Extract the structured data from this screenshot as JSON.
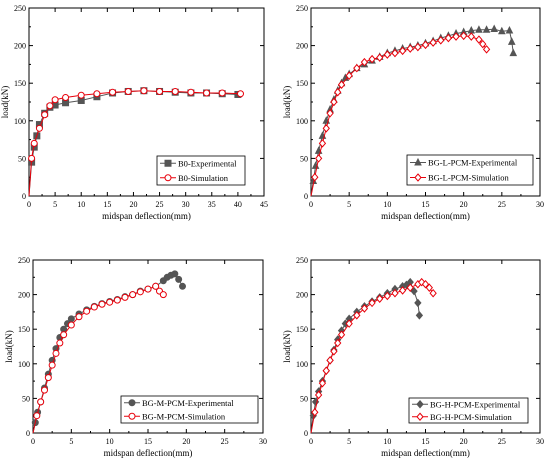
{
  "chart_data": [
    {
      "type": "line",
      "xlabel": "midspan deflection(mm)",
      "ylabel": "load(kN)",
      "xlim": [
        0,
        45
      ],
      "ylim": [
        0,
        250
      ],
      "xticks": [
        0,
        5,
        10,
        15,
        20,
        25,
        30,
        35,
        40,
        45
      ],
      "yticks": [
        0,
        50,
        100,
        150,
        200,
        250
      ],
      "legend_position": "bottom-right",
      "series": [
        {
          "name": "B0-Experimental",
          "color": "#555555",
          "marker": "square",
          "x": [
            0,
            0.5,
            1,
            1.5,
            2,
            3,
            4,
            5,
            7,
            10,
            13,
            16,
            19,
            22,
            25,
            28,
            31,
            34,
            37,
            40
          ],
          "y": [
            0,
            45,
            65,
            80,
            95,
            110,
            118,
            121,
            124,
            127,
            132,
            137,
            139,
            140,
            139,
            138,
            137,
            137,
            136,
            135
          ]
        },
        {
          "name": "B0-Simulation",
          "color": "#e8000b",
          "marker": "circle",
          "x": [
            0,
            0.5,
            1,
            2,
            3,
            4,
            5,
            7,
            10,
            13,
            16,
            19,
            22,
            25,
            28,
            31,
            34,
            37,
            40.5
          ],
          "y": [
            0,
            50,
            70,
            90,
            108,
            120,
            128,
            131,
            134,
            136,
            138,
            139,
            140,
            139,
            139,
            138,
            137,
            137,
            136
          ]
        }
      ]
    },
    {
      "type": "line",
      "xlabel": "midspan deflection(mm)",
      "ylabel": "load(kN)",
      "xlim": [
        0,
        30
      ],
      "ylim": [
        0,
        250
      ],
      "xticks": [
        0,
        5,
        10,
        15,
        20,
        25,
        30
      ],
      "yticks": [
        0,
        50,
        100,
        150,
        200,
        250
      ],
      "legend_position": "bottom-right",
      "series": [
        {
          "name": "BG-L-PCM-Experimental",
          "color": "#555555",
          "marker": "triangle",
          "x": [
            0,
            0.3,
            0.6,
            1,
            1.5,
            2,
            2.5,
            3,
            3.5,
            4,
            4.5,
            5,
            6,
            7,
            8,
            9,
            10,
            11,
            12,
            13,
            14,
            15,
            16,
            17,
            18,
            19,
            20,
            21,
            22,
            23,
            24,
            25,
            26,
            26.3,
            26.5
          ],
          "y": [
            0,
            20,
            40,
            60,
            80,
            100,
            115,
            128,
            140,
            150,
            157,
            162,
            170,
            175,
            180,
            185,
            190,
            193,
            196,
            198,
            200,
            203,
            206,
            210,
            213,
            216,
            218,
            220,
            221,
            221,
            222,
            219,
            220,
            205,
            190
          ]
        },
        {
          "name": "BG-L-PCM-Simulation",
          "color": "#e8000b",
          "marker": "diamond",
          "x": [
            0,
            0.5,
            1,
            1.5,
            2,
            2.5,
            3,
            3.5,
            4,
            5,
            6,
            7,
            8,
            9,
            10,
            11,
            12,
            13,
            14,
            15,
            16,
            17,
            18,
            19,
            20,
            21,
            22,
            22.5,
            23
          ],
          "y": [
            0,
            25,
            50,
            70,
            90,
            110,
            125,
            138,
            148,
            160,
            170,
            178,
            182,
            184,
            188,
            190,
            193,
            196,
            198,
            201,
            204,
            207,
            210,
            212,
            213,
            212,
            208,
            202,
            195
          ]
        }
      ]
    },
    {
      "type": "line",
      "xlabel": "midspan deflection(mm)",
      "ylabel": "load(kN)",
      "xlim": [
        0,
        30
      ],
      "ylim": [
        0,
        250
      ],
      "xticks": [
        0,
        5,
        10,
        15,
        20,
        25,
        30
      ],
      "yticks": [
        0,
        50,
        100,
        150,
        200,
        250
      ],
      "legend_position": "bottom-right",
      "series": [
        {
          "name": "BG-M-PCM-Experimental",
          "color": "#555555",
          "marker": "circle-filled",
          "x": [
            0,
            0.3,
            0.6,
            1,
            1.5,
            2,
            2.5,
            3,
            3.5,
            4,
            4.5,
            5,
            6,
            7,
            8,
            9,
            10,
            11,
            12,
            13,
            14,
            15,
            16,
            17,
            17.5,
            18,
            18.5,
            19,
            19.5
          ],
          "y": [
            0,
            15,
            30,
            45,
            65,
            85,
            105,
            122,
            138,
            150,
            158,
            165,
            172,
            178,
            183,
            187,
            190,
            193,
            197,
            200,
            205,
            208,
            212,
            220,
            225,
            228,
            230,
            222,
            212
          ]
        },
        {
          "name": "BG-M-PCM-Simulation",
          "color": "#e8000b",
          "marker": "circle",
          "x": [
            0,
            0.5,
            1,
            1.5,
            2,
            2.5,
            3,
            3.5,
            4,
            5,
            6,
            7,
            8,
            9,
            10,
            11,
            12,
            13,
            14,
            15,
            16,
            16.5,
            17
          ],
          "y": [
            0,
            25,
            45,
            62,
            80,
            98,
            115,
            130,
            142,
            156,
            168,
            176,
            182,
            186,
            189,
            192,
            196,
            200,
            204,
            208,
            212,
            205,
            200
          ]
        }
      ]
    },
    {
      "type": "line",
      "xlabel": "midspan deflection(mm)",
      "ylabel": "load(kN)",
      "xlim": [
        0,
        30
      ],
      "ylim": [
        0,
        250
      ],
      "xticks": [
        0,
        5,
        10,
        15,
        20,
        25,
        30
      ],
      "yticks": [
        0,
        50,
        100,
        150,
        200,
        250
      ],
      "legend_position": "bottom-right",
      "series": [
        {
          "name": "BG-H-PCM-Experimental",
          "color": "#555555",
          "marker": "diamond-filled",
          "x": [
            0,
            0.3,
            0.6,
            1,
            1.5,
            2,
            2.5,
            3,
            3.5,
            4,
            4.5,
            5,
            6,
            7,
            8,
            9,
            10,
            11,
            12,
            12.5,
            13,
            13.5,
            14,
            14.2
          ],
          "y": [
            0,
            25,
            45,
            60,
            75,
            90,
            105,
            120,
            135,
            148,
            158,
            165,
            175,
            183,
            190,
            196,
            202,
            208,
            212,
            214,
            218,
            205,
            188,
            170
          ]
        },
        {
          "name": "BG-H-PCM-Simulation",
          "color": "#e8000b",
          "marker": "diamond",
          "x": [
            0,
            0.5,
            1,
            1.5,
            2,
            2.5,
            3,
            3.5,
            4,
            5,
            6,
            7,
            8,
            9,
            10,
            11,
            12,
            13,
            14,
            14.5,
            15,
            15.5,
            16
          ],
          "y": [
            0,
            30,
            55,
            72,
            90,
            105,
            118,
            130,
            142,
            158,
            170,
            180,
            188,
            194,
            198,
            202,
            206,
            210,
            215,
            218,
            215,
            210,
            202
          ]
        }
      ]
    }
  ]
}
